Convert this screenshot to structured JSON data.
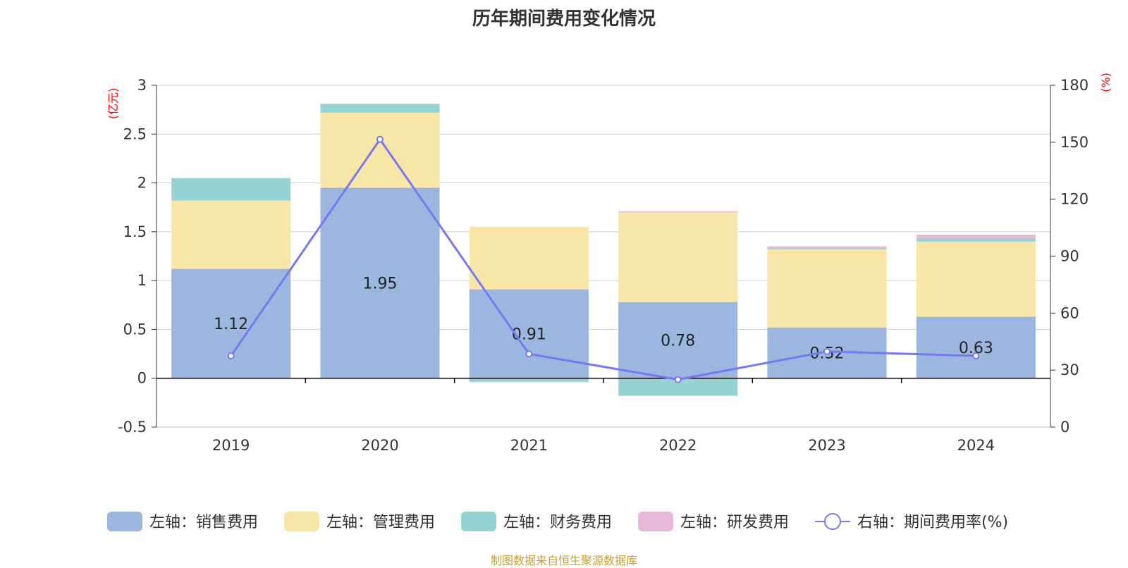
{
  "chart_data": {
    "type": "bar",
    "stacked": true,
    "title": "历年期间费用变化情况",
    "categories": [
      "2019",
      "2020",
      "2021",
      "2022",
      "2023",
      "2024"
    ],
    "left_axis": {
      "unit_label": "(亿元)",
      "ylim": [
        -0.5,
        3
      ],
      "ticks": [
        -0.5,
        0,
        0.5,
        1,
        1.5,
        2,
        2.5,
        3
      ],
      "tick_labels": [
        "-0.5",
        "0",
        "0.5",
        "1",
        "1.5",
        "2",
        "2.5",
        "3"
      ]
    },
    "right_axis": {
      "unit_label": "(%)",
      "ylim": [
        0,
        180
      ],
      "ticks": [
        0,
        30,
        60,
        90,
        120,
        150,
        180
      ],
      "tick_labels": [
        "0",
        "30",
        "60",
        "90",
        "120",
        "150",
        "180"
      ]
    },
    "series": [
      {
        "name": "左轴：销售费用",
        "axis": "left",
        "kind": "bar",
        "color": "#9bb7e0",
        "values": [
          1.12,
          1.95,
          0.91,
          0.78,
          0.52,
          0.63
        ],
        "labels": [
          "1.12",
          "1.95",
          "0.91",
          "0.78",
          "0.52",
          "0.63"
        ]
      },
      {
        "name": "左轴：管理费用",
        "axis": "left",
        "kind": "bar",
        "color": "#f8e6a8",
        "values": [
          0.7,
          0.77,
          0.64,
          0.92,
          0.8,
          0.77
        ]
      },
      {
        "name": "左轴：财务费用",
        "axis": "left",
        "kind": "bar",
        "color": "#96d4d4",
        "values": [
          0.23,
          0.09,
          -0.04,
          -0.18,
          0.01,
          0.03
        ]
      },
      {
        "name": "左轴：研发费用",
        "axis": "left",
        "kind": "bar",
        "color": "#e7b8d9",
        "values": [
          0.0,
          0.0,
          0.0,
          0.01,
          0.02,
          0.04
        ]
      },
      {
        "name": "右轴：期间费用率(%)",
        "axis": "right",
        "kind": "line",
        "color": "#7878f0",
        "values": [
          37.5,
          151.5,
          38.5,
          25.0,
          39.8,
          37.5
        ]
      }
    ],
    "grid": true,
    "legend_position": "bottom"
  },
  "source_note": "制图数据来自恒生聚源数据库"
}
